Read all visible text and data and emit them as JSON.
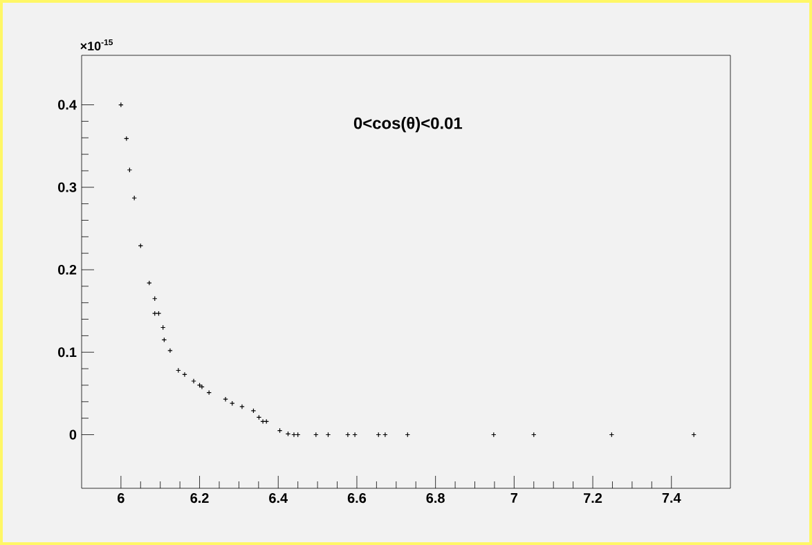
{
  "chart_data": {
    "type": "scatter",
    "title": "0<cos(θ)<0.01",
    "annotations": [
      "×10$^{-15}$"
    ],
    "x": [
      6.0,
      6.014,
      6.022,
      6.034,
      6.05,
      6.072,
      6.086,
      6.086,
      6.096,
      6.107,
      6.11,
      6.125,
      6.146,
      6.162,
      6.185,
      6.2,
      6.206,
      6.224,
      6.266,
      6.283,
      6.308,
      6.337,
      6.351,
      6.361,
      6.37,
      6.404,
      6.425,
      6.44,
      6.45,
      6.496,
      6.527,
      6.577,
      6.595,
      6.655,
      6.672,
      6.729,
      6.948,
      7.05,
      7.248,
      7.457
    ],
    "series": [
      {
        "color": "#000000",
        "values": [
          0.4,
          0.359,
          0.321,
          0.287,
          0.229,
          0.184,
          0.165,
          0.147,
          0.147,
          0.13,
          0.115,
          0.102,
          0.078,
          0.073,
          0.065,
          0.06,
          0.058,
          0.051,
          0.043,
          0.038,
          0.034,
          0.029,
          0.021,
          0.016,
          0.016,
          0.005,
          0.001,
          0.0,
          0.0,
          0.0,
          0.0,
          0.0,
          0.0,
          0.0,
          0.0,
          0.0,
          0.0,
          0.0,
          0.0,
          0.0
        ]
      }
    ],
    "xlim": [
      5.9,
      7.55
    ],
    "ylim": [
      -0.065,
      0.46
    ],
    "xticks": [
      6,
      6.2,
      6.4,
      6.6,
      6.8,
      7,
      7.2,
      7.4
    ],
    "yticks": [
      0,
      0.1,
      0.2,
      0.3,
      0.4
    ],
    "marker": "cross"
  }
}
